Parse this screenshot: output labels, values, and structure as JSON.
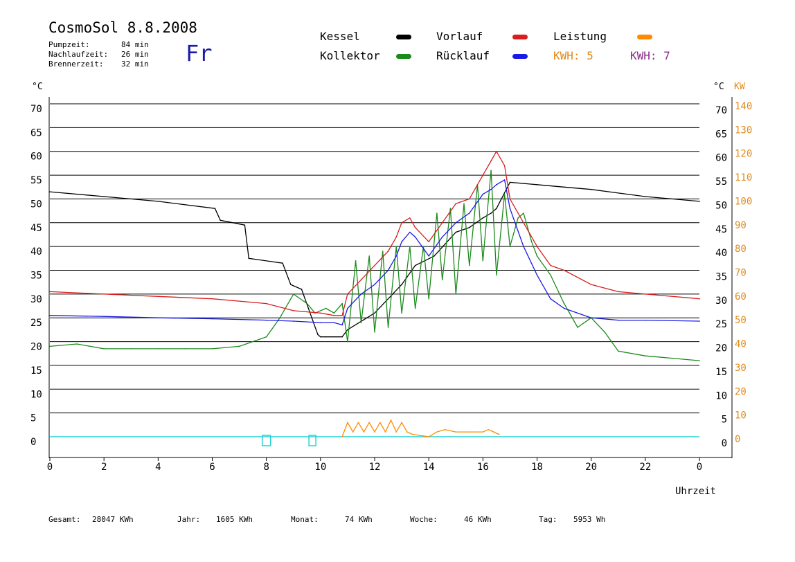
{
  "header": {
    "title": "CosmoSol 8.8.2008",
    "day": "Fr",
    "stats": [
      {
        "label": "Pumpzeit:",
        "value": "84 min"
      },
      {
        "label": "Nachlaufzeit:",
        "value": "26 min"
      },
      {
        "label": "Brennerzeit:",
        "value": "32 min"
      }
    ]
  },
  "legend": {
    "kessel": {
      "label": "Kessel",
      "color": "#000000"
    },
    "kollektor": {
      "label": "Kollektor",
      "color": "#1a8a1a"
    },
    "vorlauf": {
      "label": "Vorlauf",
      "color": "#d81e1e"
    },
    "ruecklauf": {
      "label": "Rücklauf",
      "color": "#1a1ae6"
    },
    "leistung": {
      "label": "Leistung",
      "color": "#ff8a00"
    },
    "kwh_orange": "KWH: 5",
    "kwh_purple": "KWH: 7",
    "orange": "#e08a1a",
    "purple": "#8a2a8a"
  },
  "chart_data": {
    "type": "line",
    "xlabel": "Uhrzeit",
    "x_ticks": [
      "0",
      "2",
      "4",
      "6",
      "8",
      "10",
      "12",
      "14",
      "16",
      "18",
      "20",
      "22",
      "0"
    ],
    "xlim": [
      0,
      24
    ],
    "y_unit_left": "°C",
    "y_unit_right": "°C",
    "y2_unit": "KW",
    "ylim": [
      0,
      70
    ],
    "y2lim": [
      0,
      140
    ],
    "y_ticks": [
      "0",
      "5",
      "10",
      "15",
      "20",
      "25",
      "30",
      "35",
      "40",
      "45",
      "50",
      "55",
      "60",
      "65",
      "70"
    ],
    "y_ticks_right": [
      "0",
      "5",
      "10",
      "15",
      "20",
      "25",
      "30",
      "35",
      "40",
      "45",
      "50",
      "55",
      "60",
      "65",
      "70"
    ],
    "y2_ticks": [
      "0",
      "10",
      "20",
      "30",
      "40",
      "50",
      "60",
      "70",
      "80",
      "90",
      "100",
      "110",
      "120",
      "130",
      "140"
    ],
    "grid": true,
    "series": [
      {
        "name": "Kessel",
        "color": "#000000",
        "x": [
          0,
          2,
          4,
          6.1,
          6.3,
          7.2,
          7.35,
          8.6,
          8.9,
          9.3,
          9.9,
          10,
          10.2,
          10.8,
          11,
          12,
          13,
          13.5,
          14.2,
          15,
          15.5,
          16,
          16.3,
          16.5,
          17,
          18,
          19,
          20,
          22,
          24
        ],
        "y": [
          51.5,
          50.5,
          49.5,
          48,
          45.5,
          44.5,
          37.5,
          36.5,
          32,
          31,
          21.5,
          21,
          21,
          21,
          22.5,
          26,
          32,
          36,
          38,
          43,
          44,
          46,
          47,
          48,
          53.5,
          53,
          52.5,
          52,
          50.5,
          49.5
        ]
      },
      {
        "name": "Kollektor",
        "color": "#1a8a1a",
        "x": [
          0,
          1,
          2,
          3,
          4,
          5,
          6,
          7,
          8,
          8.5,
          9,
          9.5,
          9.8,
          10.2,
          10.5,
          10.8,
          11,
          11.3,
          11.5,
          11.8,
          12,
          12.3,
          12.5,
          12.8,
          13,
          13.3,
          13.5,
          13.8,
          14,
          14.3,
          14.5,
          14.8,
          15,
          15.3,
          15.5,
          15.8,
          16,
          16.3,
          16.5,
          16.8,
          17,
          17.3,
          17.5,
          17.8,
          18,
          18.5,
          19,
          19.5,
          20,
          20.5,
          21,
          22,
          23,
          24
        ],
        "y": [
          19,
          19.5,
          18.5,
          18.5,
          18.5,
          18.5,
          18.5,
          19,
          21,
          25,
          30,
          28,
          26,
          27,
          26,
          28,
          20,
          37,
          24,
          38,
          22,
          39,
          23,
          40,
          26,
          40,
          27,
          40,
          29,
          47,
          33,
          48,
          30,
          49,
          36,
          53,
          37,
          56,
          34,
          51,
          40,
          46,
          47,
          41,
          38,
          34,
          28,
          23,
          25,
          22,
          18,
          17,
          16.5,
          16
        ]
      },
      {
        "name": "Vorlauf",
        "color": "#d81e1e",
        "x": [
          0,
          2,
          4,
          6,
          8,
          9,
          10,
          10.5,
          10.8,
          11,
          11.5,
          12,
          12.5,
          12.8,
          13,
          13.3,
          13.5,
          14,
          14.5,
          15,
          15.5,
          16,
          16.3,
          16.5,
          16.8,
          17,
          17.5,
          18,
          18.5,
          19,
          20,
          21,
          22,
          24
        ],
        "y": [
          30.5,
          30,
          29.5,
          29,
          28,
          26.5,
          26,
          25.5,
          25.5,
          30,
          33,
          36,
          39,
          42,
          45,
          46,
          44,
          41,
          45,
          49,
          50,
          55,
          58,
          60,
          57,
          50,
          45,
          40,
          36,
          35,
          32,
          30.5,
          30,
          29
        ]
      },
      {
        "name": "Rücklauf",
        "color": "#1a1ae6",
        "x": [
          0,
          2,
          4,
          6,
          8,
          9,
          10,
          10.5,
          10.8,
          11,
          11.5,
          12,
          12.5,
          12.8,
          13,
          13.3,
          13.5,
          14,
          14.5,
          15,
          15.5,
          16,
          16.3,
          16.5,
          16.8,
          17,
          17.5,
          18,
          18.5,
          19,
          20,
          21,
          22,
          24
        ],
        "y": [
          25.5,
          25.3,
          25,
          24.8,
          24.5,
          24.3,
          24,
          24,
          23.5,
          27,
          30,
          32,
          35,
          38,
          41,
          43,
          42,
          38,
          42,
          45,
          47,
          51,
          52,
          53,
          54,
          48,
          40,
          34,
          29,
          27,
          25,
          24.5,
          24.5,
          24.3
        ]
      },
      {
        "name": "Leistung",
        "color": "#ff8a00",
        "x": [
          10.8,
          11,
          11.2,
          11.4,
          11.6,
          11.8,
          12,
          12.2,
          12.4,
          12.6,
          12.8,
          13,
          13.2,
          13.4,
          14,
          14.3,
          14.6,
          15,
          15.5,
          16,
          16.2,
          16.4,
          16.6
        ],
        "y": [
          0,
          3,
          1,
          3,
          1,
          3,
          1,
          3,
          1,
          3.5,
          1,
          3,
          1,
          0.5,
          0,
          1,
          1.5,
          1,
          1,
          1,
          1.5,
          1,
          0.5
        ]
      }
    ]
  },
  "footer": {
    "gesamt_label": "Gesamt:",
    "gesamt_value": "28047 KWh",
    "jahr_label": "Jahr:",
    "jahr_value": "1605 KWh",
    "monat_label": "Monat:",
    "monat_value": "74 KWh",
    "woche_label": "Woche:",
    "woche_value": "46 KWh",
    "tag_label": "Tag:",
    "tag_value": "5953 Wh"
  }
}
